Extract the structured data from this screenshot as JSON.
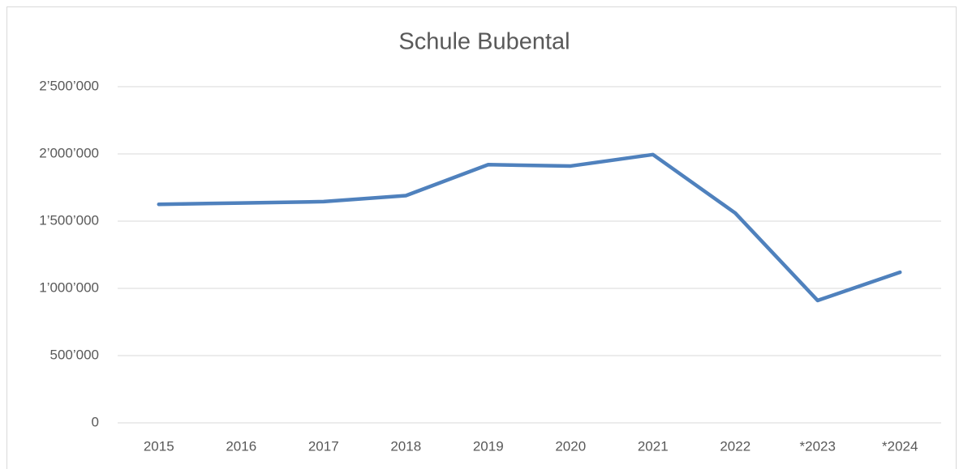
{
  "chart_data": {
    "type": "line",
    "title": "Schule Bubental",
    "categories": [
      "2015",
      "2016",
      "2017",
      "2018",
      "2019",
      "2020",
      "2021",
      "2022",
      "*2023",
      "*2024"
    ],
    "values": [
      1625000,
      1635000,
      1645000,
      1690000,
      1920000,
      1910000,
      1995000,
      1560000,
      910000,
      1120000
    ],
    "color": "#4f81bd",
    "ylim": [
      0,
      2500000
    ],
    "yticks": [
      0,
      {
        "value": 500000,
        "label": "500’000"
      },
      {
        "value": 1000000,
        "label": "1’000’000"
      },
      {
        "value": 1500000,
        "label": "1’500’000"
      },
      {
        "value": 2000000,
        "label": "2’000’000"
      },
      {
        "value": 2500000,
        "label": "2’500’000"
      }
    ],
    "grid": true
  }
}
